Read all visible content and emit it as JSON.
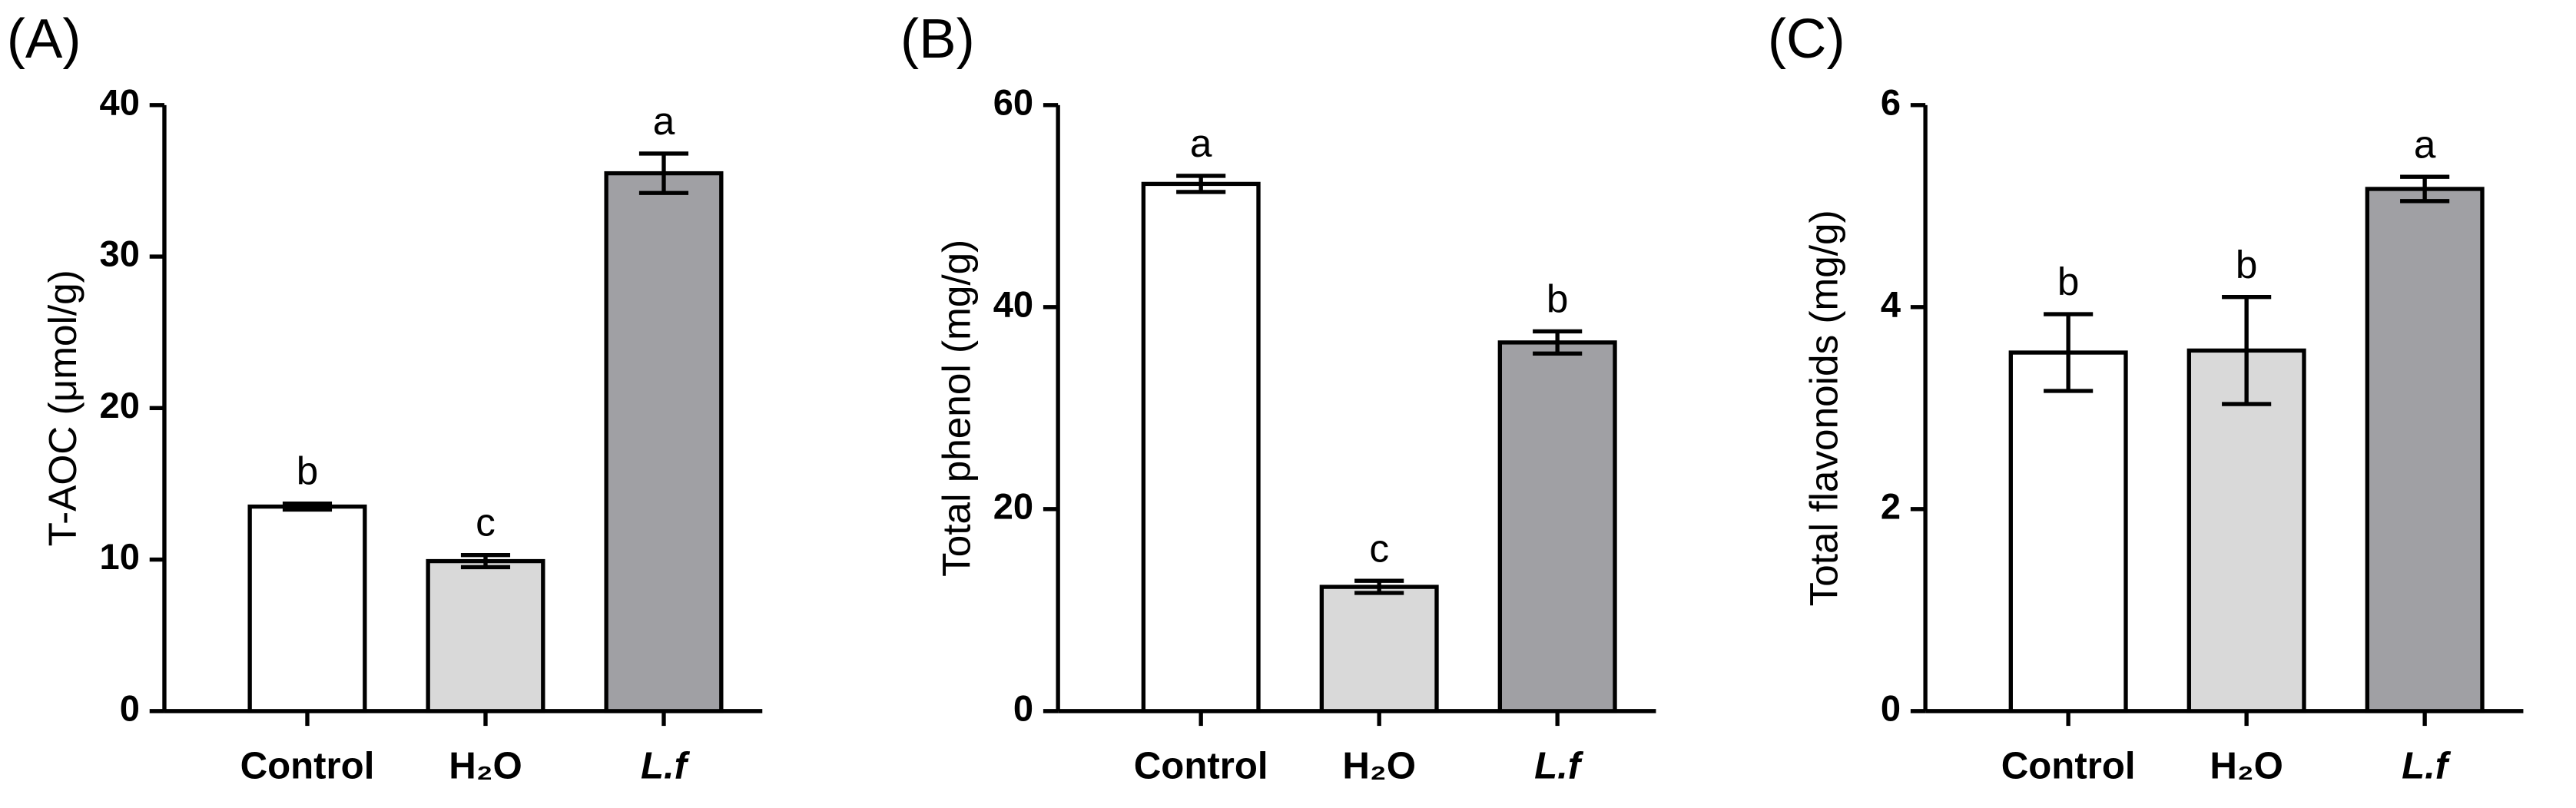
{
  "chart_data": [
    {
      "type": "bar",
      "panel_label": "(A)",
      "ylabel": "T-AOC (μmol/g)",
      "categories": [
        "Control",
        "H₂O",
        "L.f"
      ],
      "values": [
        13.5,
        9.9,
        35.5
      ],
      "errors": [
        0.2,
        0.4,
        1.3
      ],
      "annotations": [
        "b",
        "c",
        "a"
      ],
      "colors": [
        "#ffffff",
        "#d9d9d9",
        "#a0a0a4"
      ],
      "ylim": [
        0,
        40
      ],
      "yticks": [
        0,
        10,
        20,
        30,
        40
      ]
    },
    {
      "type": "bar",
      "panel_label": "(B)",
      "ylabel": "Total phenol (mg/g)",
      "categories": [
        "Control",
        "H₂O",
        "L.f"
      ],
      "values": [
        52.2,
        12.3,
        36.5
      ],
      "errors": [
        0.8,
        0.6,
        1.1
      ],
      "annotations": [
        "a",
        "c",
        "b"
      ],
      "colors": [
        "#ffffff",
        "#d9d9d9",
        "#a0a0a4"
      ],
      "ylim": [
        0,
        60
      ],
      "yticks": [
        0,
        20,
        40,
        60
      ]
    },
    {
      "type": "bar",
      "panel_label": "(C)",
      "ylabel": "Total flavonoids (mg/g)",
      "categories": [
        "Control",
        "H₂O",
        "L.f"
      ],
      "values": [
        3.55,
        3.57,
        5.17
      ],
      "errors": [
        0.38,
        0.53,
        0.12
      ],
      "annotations": [
        "b",
        "b",
        "a"
      ],
      "colors": [
        "#ffffff",
        "#d9d9d9",
        "#a0a0a4"
      ],
      "ylim": [
        0,
        6
      ],
      "yticks": [
        0,
        2,
        4,
        6
      ]
    }
  ]
}
